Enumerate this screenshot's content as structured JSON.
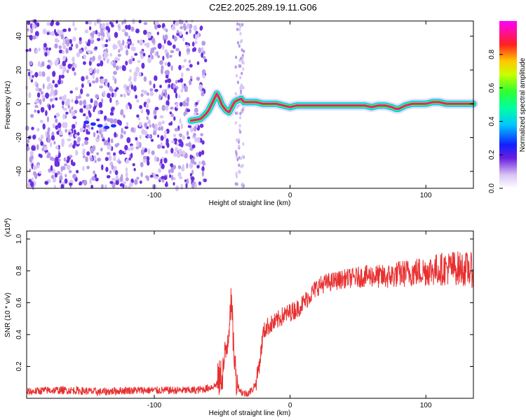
{
  "figure_title": "C2E2.2025.289.19.11.G06",
  "colors": {
    "snr_line": "#e83030",
    "scatter_faint": "#d9c8f6",
    "scatter_mid": "#b79be8",
    "scatter_dark": "#6a2fe0"
  },
  "chart_data": [
    {
      "type": "heatmap",
      "title": "C2E2.2025.289.19.11.G06",
      "xlabel": "Height of straight line (km)",
      "ylabel": "Frequency (Hz)",
      "xlim": [
        -194,
        135
      ],
      "ylim": [
        -50,
        49
      ],
      "xticks": [
        -100,
        0,
        100
      ],
      "yticks": [
        -40,
        -20,
        0,
        20,
        40
      ],
      "colorbar": {
        "label": "Normalized spectral amplitude",
        "range": [
          0,
          1
        ],
        "ticks": [
          "0.0",
          "0.2",
          "0.4",
          "0.6",
          "0.8"
        ],
        "colormap": "white-purple-blue-cyan-green-yellow-red-magenta"
      },
      "noise_region_x": [
        -194,
        -62
      ],
      "gap_x": [
        -62,
        -36
      ],
      "signal_track": {
        "x": [
          -73,
          -66,
          -62,
          -60,
          -57,
          -54,
          -52,
          -50,
          -47,
          -45,
          -43,
          -41,
          -39,
          -36,
          -34,
          -31,
          -28,
          -25,
          -20,
          -10,
          -5,
          0,
          5,
          10,
          20,
          30,
          40,
          50,
          55,
          60,
          65,
          70,
          75,
          78,
          80,
          85,
          90,
          95,
          100,
          105,
          110,
          115,
          120,
          125,
          130,
          135
        ],
        "y": [
          -10,
          -9,
          -6,
          -4,
          1,
          6,
          3,
          -1,
          -4,
          -5,
          -2,
          1,
          2,
          3,
          1,
          1,
          1,
          1,
          0,
          0,
          -1,
          -2,
          -1,
          -1,
          -1,
          -1,
          -1,
          -1,
          -1,
          -2,
          -1,
          -1,
          -2,
          -3,
          -3,
          -1,
          0,
          0,
          0,
          1,
          1,
          0,
          0,
          0,
          0,
          0
        ]
      },
      "weak_track": {
        "x": [
          -150,
          -145,
          -140,
          -135,
          -130
        ],
        "y": [
          -11,
          -12,
          -13,
          -14,
          -13
        ]
      }
    },
    {
      "type": "line",
      "title": "",
      "xlabel": "Height of straight line (km)",
      "ylabel": "SNR (10 * v/v)",
      "ymultiplier": "(x10^4)",
      "xlim": [
        -194,
        135
      ],
      "ylim": [
        0,
        1.05
      ],
      "xticks": [
        -100,
        0,
        100
      ],
      "yticks": [
        0.2,
        0.4,
        0.6,
        0.8,
        1.0
      ],
      "ytick_labels": [
        "0.2",
        "0.4",
        "0.6",
        "0.8",
        "1.0"
      ],
      "series": [
        {
          "x": [
            -194,
            -180,
            -160,
            -140,
            -120,
            -100,
            -80,
            -70,
            -62,
            -55,
            -50,
            -47,
            -45,
            -44,
            -43,
            -42,
            -41,
            -40,
            -38,
            -36,
            -34,
            -32,
            -30,
            -28,
            -25,
            -22,
            -20,
            -18,
            -15,
            -12,
            -10,
            -8,
            -5,
            -2,
            0,
            5,
            10,
            15,
            20,
            25,
            30,
            35,
            40,
            50,
            60,
            70,
            80,
            90,
            100,
            110,
            120,
            130,
            135
          ],
          "y": [
            0.04,
            0.05,
            0.05,
            0.04,
            0.05,
            0.05,
            0.05,
            0.05,
            0.06,
            0.08,
            0.15,
            0.3,
            0.45,
            0.6,
            0.55,
            0.4,
            0.25,
            0.15,
            0.07,
            0.04,
            0.03,
            0.03,
            0.04,
            0.05,
            0.1,
            0.25,
            0.4,
            0.44,
            0.46,
            0.47,
            0.48,
            0.5,
            0.52,
            0.53,
            0.54,
            0.56,
            0.6,
            0.65,
            0.7,
            0.72,
            0.73,
            0.74,
            0.75,
            0.76,
            0.77,
            0.76,
            0.78,
            0.79,
            0.8,
            0.81,
            0.82,
            0.81,
            0.8
          ]
        }
      ]
    }
  ]
}
